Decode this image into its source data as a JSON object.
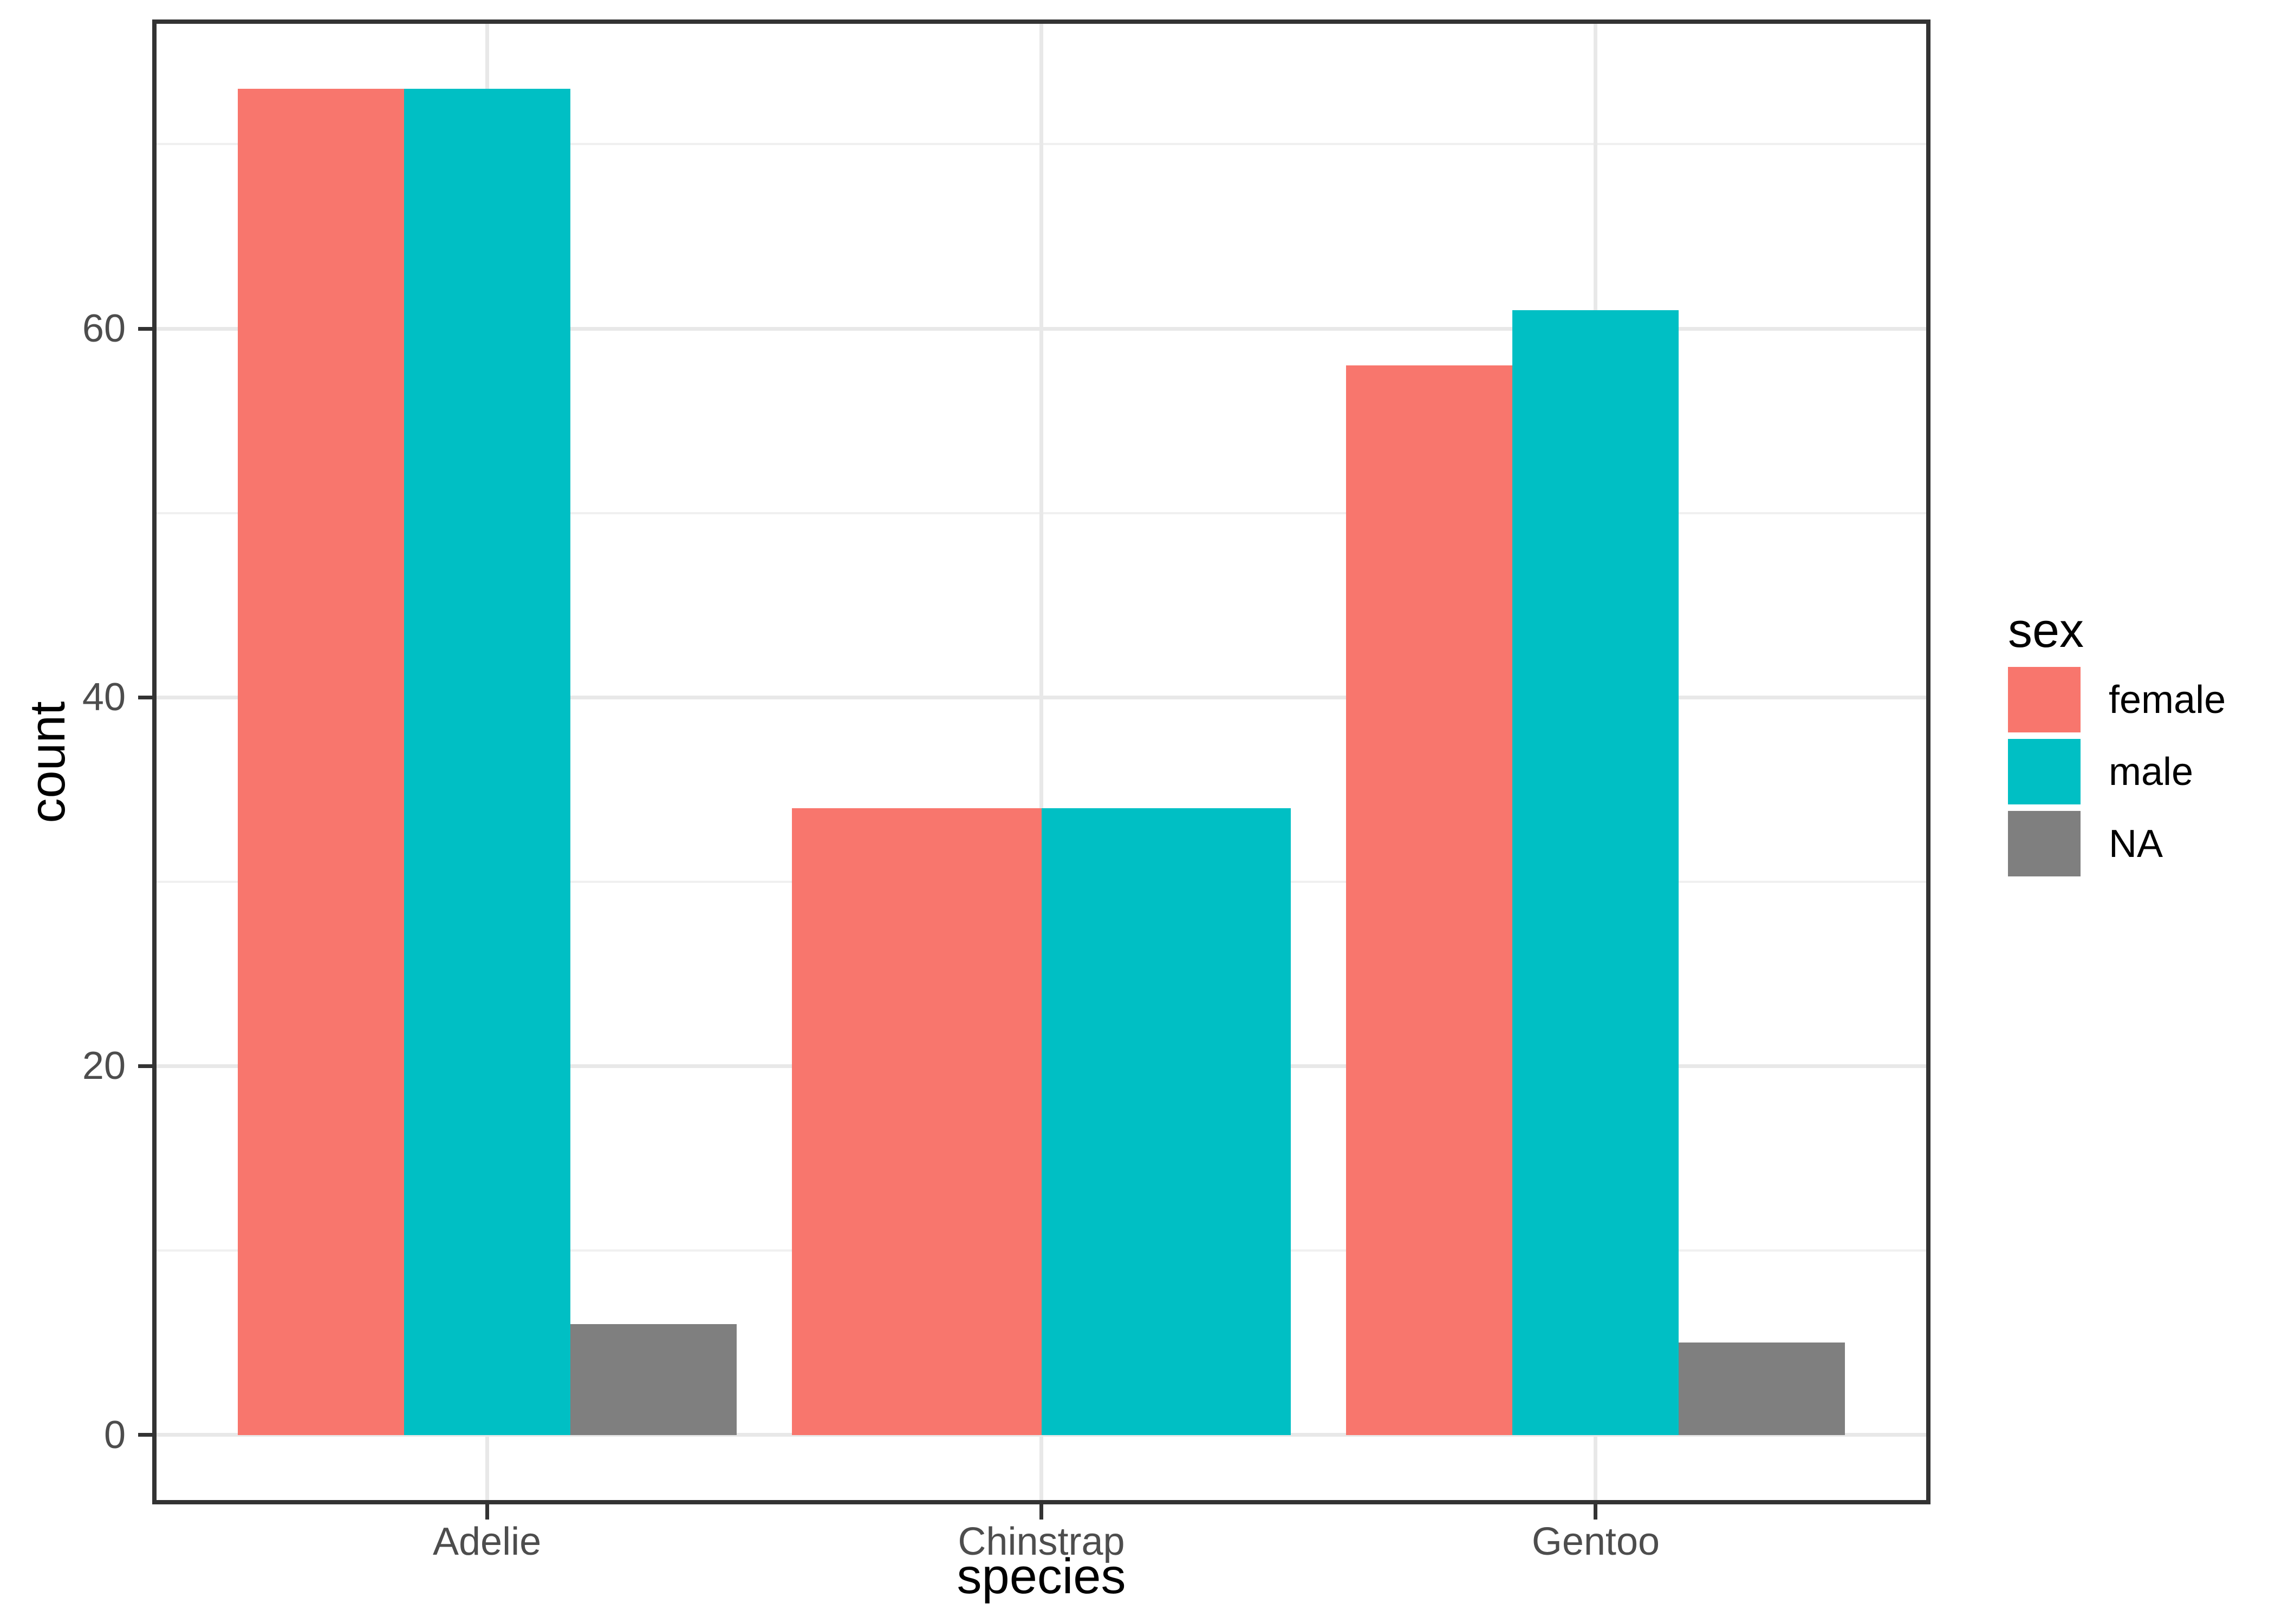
{
  "colors": {
    "background": "#FFFFFF",
    "panel_background": "#FFFFFF",
    "grid_major": "#E8E8E8",
    "grid_minor": "#F0F0F0",
    "panel_border": "#333333",
    "tick_mark": "#333333",
    "axis_tick_text": "#4D4D4D",
    "axis_title_text": "#000000",
    "legend_text": "#000000",
    "female": "#F8766D",
    "male": "#00BFC4",
    "na": "#7F7F7F"
  },
  "chart_data": {
    "type": "bar",
    "title": "",
    "xlabel": "species",
    "ylabel": "count",
    "categories": [
      "Adelie",
      "Chinstrap",
      "Gentoo"
    ],
    "series": [
      {
        "name": "female",
        "color_key": "female",
        "values": [
          73,
          34,
          58
        ]
      },
      {
        "name": "male",
        "color_key": "male",
        "values": [
          73,
          34,
          61
        ]
      },
      {
        "name": "NA",
        "color_key": "na",
        "values": [
          6,
          null,
          5
        ]
      }
    ],
    "bar_layout": "dodge",
    "group_width_fraction": 0.9,
    "y_axis": {
      "ticks": [
        0,
        20,
        40,
        60
      ],
      "tick_labels": [
        "0",
        "20",
        "40",
        "60"
      ],
      "minor_ticks": [
        10,
        30,
        50,
        70
      ],
      "limits": [
        -3.65,
        76.65
      ]
    },
    "grid": "on",
    "legend": {
      "title": "sex",
      "position": "right",
      "entries": [
        "female",
        "male",
        "NA"
      ]
    }
  }
}
